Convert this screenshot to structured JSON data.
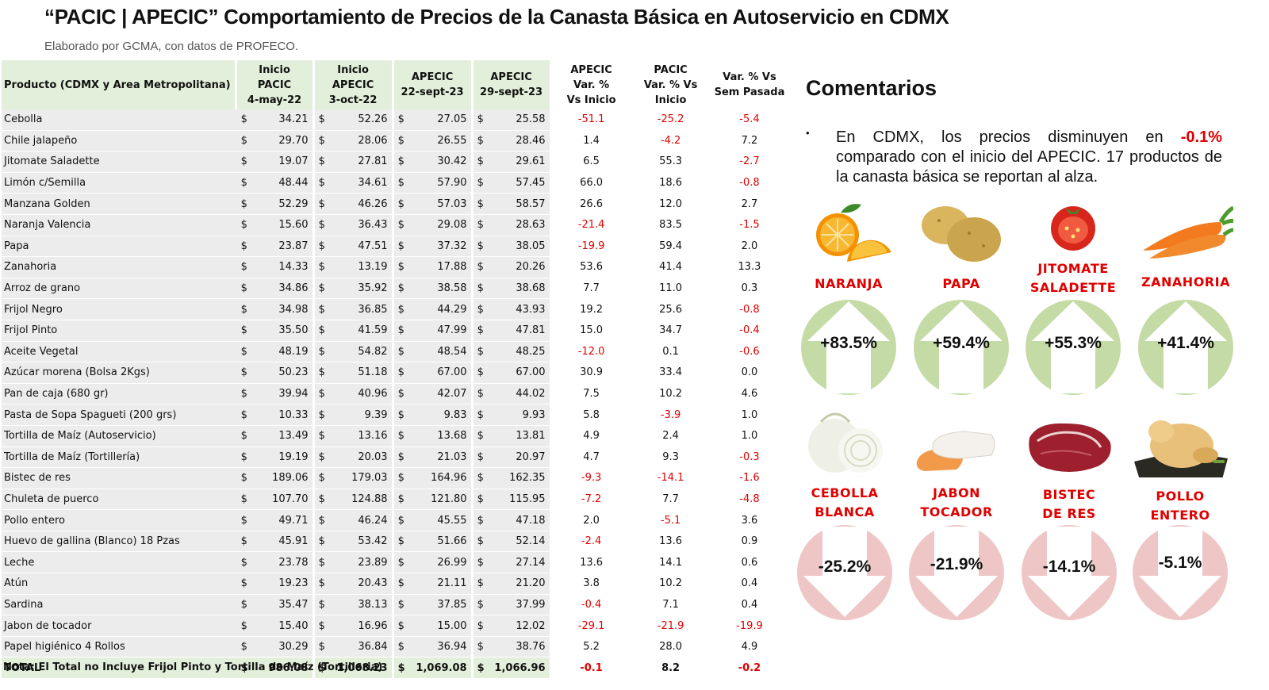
{
  "title": "“PACIC | APECIC” Comportamiento de Precios de la Canasta Básica en Autoservicio en CDMX",
  "subtitle": "Elaborado por GCMA, con datos de PROFECO.",
  "table": {
    "headers": {
      "product": "Producto (CDMX y Area Metropolitana)",
      "inicio_pacic": [
        "Inicio",
        "PACIC",
        "4-may-22"
      ],
      "inicio_apecic": [
        "Inicio",
        "APECIC",
        "3-oct-22"
      ],
      "apecic_22": [
        "APECIC",
        "22-sept-23"
      ],
      "apecic_29": [
        "APECIC",
        "29-sept-23"
      ],
      "apecic_var": [
        "APECIC",
        "Var. %",
        "Vs  Inicio"
      ],
      "pacic_var": [
        "PACIC",
        "Var. % Vs",
        "Inicio"
      ],
      "sem_var": [
        "Var. % Vs",
        "Sem Pasada"
      ]
    },
    "currency": "$",
    "rows": [
      {
        "producto": "Cebolla",
        "p1": "34.21",
        "p2": "52.26",
        "p3": "27.05",
        "p4": "25.58",
        "v1": "-51.1",
        "v2": "-25.2",
        "v3": "-5.4"
      },
      {
        "producto": "Chile jalapeño",
        "p1": "29.70",
        "p2": "28.06",
        "p3": "26.55",
        "p4": "28.46",
        "v1": "1.4",
        "v2": "-4.2",
        "v3": "7.2"
      },
      {
        "producto": "Jitomate Saladette",
        "p1": "19.07",
        "p2": "27.81",
        "p3": "30.42",
        "p4": "29.61",
        "v1": "6.5",
        "v2": "55.3",
        "v3": "-2.7"
      },
      {
        "producto": "Limón c/Semilla",
        "p1": "48.44",
        "p2": "34.61",
        "p3": "57.90",
        "p4": "57.45",
        "v1": "66.0",
        "v2": "18.6",
        "v3": "-0.8"
      },
      {
        "producto": "Manzana Golden",
        "p1": "52.29",
        "p2": "46.26",
        "p3": "57.03",
        "p4": "58.57",
        "v1": "26.6",
        "v2": "12.0",
        "v3": "2.7"
      },
      {
        "producto": "Naranja Valencia",
        "p1": "15.60",
        "p2": "36.43",
        "p3": "29.08",
        "p4": "28.63",
        "v1": "-21.4",
        "v2": "83.5",
        "v3": "-1.5"
      },
      {
        "producto": "Papa",
        "p1": "23.87",
        "p2": "47.51",
        "p3": "37.32",
        "p4": "38.05",
        "v1": "-19.9",
        "v2": "59.4",
        "v3": "2.0"
      },
      {
        "producto": "Zanahoria",
        "p1": "14.33",
        "p2": "13.19",
        "p3": "17.88",
        "p4": "20.26",
        "v1": "53.6",
        "v2": "41.4",
        "v3": "13.3"
      },
      {
        "producto": "Arroz de grano",
        "p1": "34.86",
        "p2": "35.92",
        "p3": "38.58",
        "p4": "38.68",
        "v1": "7.7",
        "v2": "11.0",
        "v3": "0.3"
      },
      {
        "producto": "Frijol Negro",
        "p1": "34.98",
        "p2": "36.85",
        "p3": "44.29",
        "p4": "43.93",
        "v1": "19.2",
        "v2": "25.6",
        "v3": "-0.8"
      },
      {
        "producto": "Frijol Pinto",
        "p1": "35.50",
        "p2": "41.59",
        "p3": "47.99",
        "p4": "47.81",
        "v1": "15.0",
        "v2": "34.7",
        "v3": "-0.4"
      },
      {
        "producto": "Aceite Vegetal",
        "p1": "48.19",
        "p2": "54.82",
        "p3": "48.54",
        "p4": "48.25",
        "v1": "-12.0",
        "v2": "0.1",
        "v3": "-0.6"
      },
      {
        "producto": "Azúcar morena (Bolsa 2Kgs)",
        "p1": "50.23",
        "p2": "51.18",
        "p3": "67.00",
        "p4": "67.00",
        "v1": "30.9",
        "v2": "33.4",
        "v3": "0.0"
      },
      {
        "producto": "Pan de caja (680 gr)",
        "p1": "39.94",
        "p2": "40.96",
        "p3": "42.07",
        "p4": "44.02",
        "v1": "7.5",
        "v2": "10.2",
        "v3": "4.6"
      },
      {
        "producto": "Pasta de Sopa Spagueti (200 grs)",
        "p1": "10.33",
        "p2": "9.39",
        "p3": "9.83",
        "p4": "9.93",
        "v1": "5.8",
        "v2": "-3.9",
        "v3": "1.0"
      },
      {
        "producto": "Tortilla de Maíz (Autoservicio)",
        "p1": "13.49",
        "p2": "13.16",
        "p3": "13.68",
        "p4": "13.81",
        "v1": "4.9",
        "v2": "2.4",
        "v3": "1.0"
      },
      {
        "producto": "Tortilla de Maíz (Tortillería)",
        "p1": "19.19",
        "p2": "20.03",
        "p3": "21.03",
        "p4": "20.97",
        "v1": "4.7",
        "v2": "9.3",
        "v3": "-0.3"
      },
      {
        "producto": "Bistec de res",
        "p1": "189.06",
        "p2": "179.03",
        "p3": "164.96",
        "p4": "162.35",
        "v1": "-9.3",
        "v2": "-14.1",
        "v3": "-1.6"
      },
      {
        "producto": "Chuleta de puerco",
        "p1": "107.70",
        "p2": "124.88",
        "p3": "121.80",
        "p4": "115.95",
        "v1": "-7.2",
        "v2": "7.7",
        "v3": "-4.8"
      },
      {
        "producto": "Pollo entero",
        "p1": "49.71",
        "p2": "46.24",
        "p3": "45.55",
        "p4": "47.18",
        "v1": "2.0",
        "v2": "-5.1",
        "v3": "3.6"
      },
      {
        "producto": "Huevo de gallina (Blanco) 18 Pzas",
        "p1": "45.91",
        "p2": "53.42",
        "p3": "51.66",
        "p4": "52.14",
        "v1": "-2.4",
        "v2": "13.6",
        "v3": "0.9"
      },
      {
        "producto": "Leche",
        "p1": "23.78",
        "p2": "23.89",
        "p3": "26.99",
        "p4": "27.14",
        "v1": "13.6",
        "v2": "14.1",
        "v3": "0.6"
      },
      {
        "producto": "Atún",
        "p1": "19.23",
        "p2": "20.43",
        "p3": "21.11",
        "p4": "21.20",
        "v1": "3.8",
        "v2": "10.2",
        "v3": "0.4"
      },
      {
        "producto": "Sardina",
        "p1": "35.47",
        "p2": "38.13",
        "p3": "37.85",
        "p4": "37.99",
        "v1": "-0.4",
        "v2": "7.1",
        "v3": "0.4"
      },
      {
        "producto": "Jabon de tocador",
        "p1": "15.40",
        "p2": "16.96",
        "p3": "15.00",
        "p4": "12.02",
        "v1": "-29.1",
        "v2": "-21.9",
        "v3": "-19.9"
      },
      {
        "producto": "Papel higiénico 4 Rollos",
        "p1": "30.29",
        "p2": "36.84",
        "p3": "36.94",
        "p4": "38.76",
        "v1": "5.2",
        "v2": "28.0",
        "v3": "4.9"
      }
    ],
    "total": {
      "producto": "TOTAL",
      "p1": "986.08",
      "p2": "1,068.23",
      "p3": "1,069.08",
      "p4": "1,066.96",
      "v1": "-0.1",
      "v2": "8.2",
      "v3": "-0.2"
    }
  },
  "note": "Nota: El Total no Incluye Frijol Pinto y Tortilla de Maíz (Tortilleria)",
  "comments": {
    "title": "Comentarios",
    "bullet": "•",
    "text_before": "En CDMX, los precios disminuyen en ",
    "highlight": "-0.1%",
    "text_after": " comparado con el inicio del APECIC. 17 productos de la canasta básica se reportan al alza."
  },
  "highlights_up": [
    {
      "label": [
        "NARANJA"
      ],
      "pct": "+83.5%",
      "icon": "orange-icon"
    },
    {
      "label": [
        "PAPA"
      ],
      "pct": "+59.4%",
      "icon": "potato-icon"
    },
    {
      "label": [
        "JITOMATE",
        "SALADETTE"
      ],
      "pct": "+55.3%",
      "icon": "tomato-icon"
    },
    {
      "label": [
        "ZANAHORIA"
      ],
      "pct": "+41.4%",
      "icon": "carrot-icon"
    }
  ],
  "highlights_down": [
    {
      "label": [
        "CEBOLLA",
        "BLANCA"
      ],
      "pct": "-25.2%",
      "icon": "onion-icon"
    },
    {
      "label": [
        "JABON",
        "TOCADOR"
      ],
      "pct": "-21.9%",
      "icon": "soap-icon"
    },
    {
      "label": [
        "BISTEC",
        "DE RES"
      ],
      "pct": "-14.1%",
      "icon": "steak-icon"
    },
    {
      "label": [
        "POLLO",
        "ENTERO"
      ],
      "pct": "-5.1%",
      "icon": "chicken-icon"
    }
  ],
  "colors": {
    "up_circle": "#c5dba6",
    "down_circle": "#efc6c6",
    "negative_text": "#e00000",
    "header_green": "#e2efda",
    "row_gray": "#ececec"
  }
}
